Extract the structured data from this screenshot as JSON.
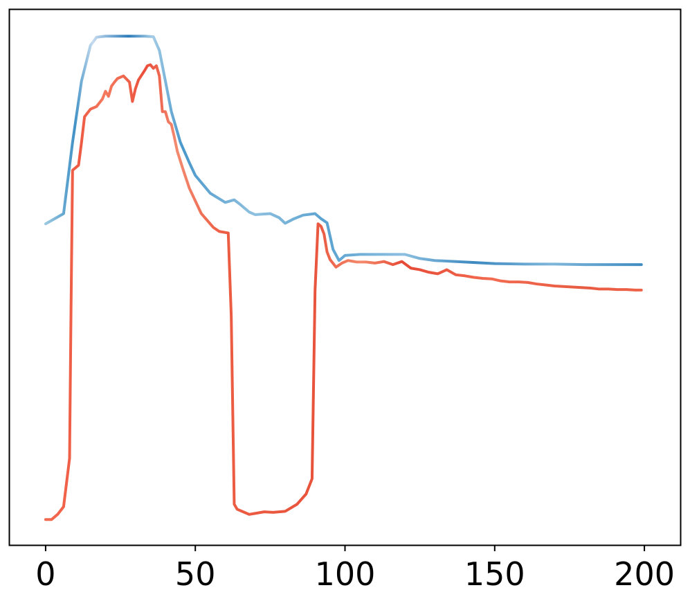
{
  "chart_data": {
    "type": "line",
    "title": "",
    "xlabel": "",
    "ylabel": "",
    "xlim": [
      -12,
      212
    ],
    "ylim": [
      -0.05,
      1.0
    ],
    "x_ticks": [
      0,
      50,
      100,
      150,
      200
    ],
    "x_tick_labels": [
      "0",
      "50",
      "100",
      "150",
      "200"
    ],
    "y_ticks_shown": false,
    "grid": false,
    "legend": "none",
    "series": [
      {
        "color": "#4a90c4",
        "style": "gradient blue line",
        "x": [
          0,
          3,
          6,
          9,
          12,
          15,
          17,
          20,
          25,
          30,
          33,
          36,
          38,
          40,
          42,
          45,
          48,
          50,
          55,
          60,
          63,
          65,
          68,
          70,
          75,
          78,
          80,
          83,
          86,
          90,
          92,
          94,
          96,
          98,
          100,
          105,
          110,
          115,
          120,
          125,
          130,
          140,
          150,
          160,
          170,
          180,
          190,
          199
        ],
        "values": [
          0.58,
          0.59,
          0.6,
          0.74,
          0.86,
          0.93,
          0.946,
          0.948,
          0.948,
          0.948,
          0.948,
          0.947,
          0.92,
          0.86,
          0.8,
          0.74,
          0.7,
          0.675,
          0.64,
          0.622,
          0.627,
          0.618,
          0.603,
          0.598,
          0.6,
          0.592,
          0.581,
          0.59,
          0.597,
          0.6,
          0.59,
          0.582,
          0.53,
          0.508,
          0.518,
          0.52,
          0.52,
          0.52,
          0.52,
          0.512,
          0.508,
          0.505,
          0.502,
          0.501,
          0.501,
          0.5,
          0.5,
          0.5
        ]
      },
      {
        "color": "#e8533c",
        "style": "gradient red line",
        "x": [
          0,
          2,
          4,
          6,
          8,
          8.5,
          9,
          10,
          11,
          12,
          13,
          15,
          17,
          19,
          20,
          21,
          22,
          23,
          24,
          26,
          28,
          29,
          30,
          31,
          33,
          34,
          35,
          36,
          37,
          38,
          39,
          40,
          41,
          42,
          43,
          44,
          46,
          48,
          52,
          56,
          58,
          61,
          62,
          63,
          64,
          66,
          68,
          70,
          73,
          76,
          80,
          84,
          87,
          89,
          90,
          91,
          92,
          93,
          94,
          95,
          97,
          99,
          101,
          104,
          107,
          110,
          113,
          116,
          119,
          122,
          125,
          128,
          131,
          134,
          137,
          140,
          143,
          146,
          149,
          152,
          155,
          158,
          161,
          164,
          167,
          170,
          173,
          176,
          179,
          182,
          185,
          188,
          191,
          194,
          197,
          199
        ],
        "values": [
          0.0,
          0.0,
          0.01,
          0.025,
          0.12,
          0.42,
          0.685,
          0.69,
          0.695,
          0.74,
          0.79,
          0.805,
          0.81,
          0.825,
          0.84,
          0.83,
          0.85,
          0.858,
          0.865,
          0.87,
          0.858,
          0.82,
          0.845,
          0.862,
          0.88,
          0.89,
          0.892,
          0.885,
          0.89,
          0.87,
          0.8,
          0.8,
          0.78,
          0.775,
          0.75,
          0.722,
          0.685,
          0.65,
          0.6,
          0.573,
          0.565,
          0.562,
          0.4,
          0.03,
          0.02,
          0.015,
          0.01,
          0.012,
          0.015,
          0.014,
          0.016,
          0.03,
          0.05,
          0.08,
          0.45,
          0.58,
          0.575,
          0.56,
          0.525,
          0.51,
          0.495,
          0.503,
          0.508,
          0.505,
          0.505,
          0.503,
          0.506,
          0.5,
          0.506,
          0.493,
          0.49,
          0.485,
          0.482,
          0.49,
          0.48,
          0.478,
          0.475,
          0.473,
          0.472,
          0.468,
          0.466,
          0.466,
          0.465,
          0.462,
          0.46,
          0.458,
          0.457,
          0.456,
          0.455,
          0.454,
          0.452,
          0.452,
          0.451,
          0.451,
          0.45,
          0.45
        ]
      }
    ]
  }
}
